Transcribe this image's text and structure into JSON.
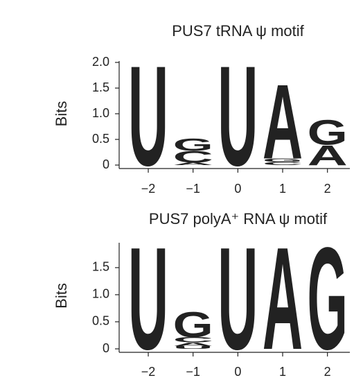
{
  "chart_data": [
    {
      "type": "logo",
      "title": "PUS7 tRNA ψ motif",
      "y_label": "Bits",
      "x": [
        -2,
        -1,
        0,
        1,
        2
      ],
      "xlim": [
        -2.65,
        2.5
      ],
      "xticks": [
        {
          "value": -2,
          "label": "−2"
        },
        {
          "value": -1,
          "label": "−1"
        },
        0,
        1,
        2
      ],
      "ylim": [
        0,
        2.0
      ],
      "yticks": [
        0,
        0.5,
        {
          "value": 1,
          "label": "1.0"
        },
        1.5,
        {
          "value": 2,
          "label": "2.0"
        }
      ],
      "colors": {
        "U": "#d8313f",
        "G": "#f2aa1f",
        "C": "#2b58a5",
        "A": "#1f9a4b"
      },
      "stacks": [
        [
          {
            "letter": "U",
            "value": 2.0
          }
        ],
        [
          {
            "letter": "A",
            "value": 0.05
          },
          {
            "letter": "C",
            "value": 0.23
          },
          {
            "letter": "G",
            "value": 0.24
          }
        ],
        [
          {
            "letter": "U",
            "value": 2.0
          }
        ],
        [
          {
            "letter": "C",
            "value": 0.06
          },
          {
            "letter": "G",
            "value": 0.07
          },
          {
            "letter": "A",
            "value": 1.49
          }
        ],
        [
          {
            "letter": "A",
            "value": 0.4
          },
          {
            "letter": "G",
            "value": 0.5
          }
        ]
      ]
    },
    {
      "type": "logo",
      "title": "PUS7 polyA⁺ RNA ψ motif",
      "y_label": "Bits",
      "x": [
        -2,
        -1,
        0,
        1,
        2
      ],
      "xlim": [
        -2.65,
        2.5
      ],
      "xticks": [
        {
          "value": -2,
          "label": "−2"
        },
        {
          "value": -1,
          "label": "−1"
        },
        0,
        1,
        2
      ],
      "ylim": [
        0,
        1.96
      ],
      "yticks": [
        0,
        0.5,
        {
          "value": 1,
          "label": "1.0"
        },
        1.5
      ],
      "colors": {
        "U": "#d8313f",
        "G": "#f2aa1f",
        "C": "#2b58a5",
        "A": "#1f9a4b"
      },
      "stacks": [
        [
          {
            "letter": "U",
            "value": 1.94
          }
        ],
        [
          {
            "letter": "U",
            "value": 0.05
          },
          {
            "letter": "A",
            "value": 0.07
          },
          {
            "letter": "C",
            "value": 0.1
          },
          {
            "letter": "G",
            "value": 0.48
          }
        ],
        [
          {
            "letter": "U",
            "value": 1.94
          }
        ],
        [
          {
            "letter": "A",
            "value": 1.94
          }
        ],
        [
          {
            "letter": "G",
            "value": 1.94
          }
        ]
      ]
    }
  ]
}
